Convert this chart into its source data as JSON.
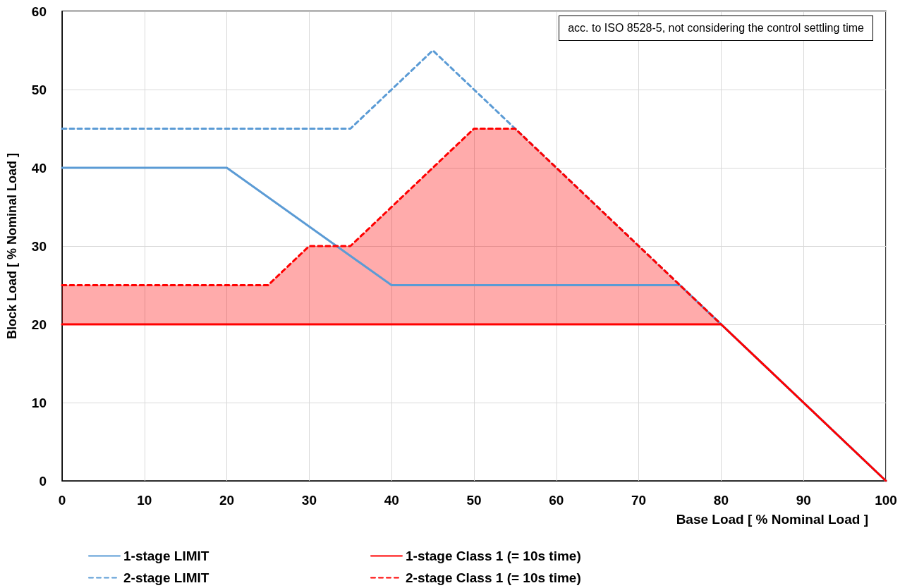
{
  "chart_data": {
    "type": "line",
    "xlabel": "Base Load [ % Nominal Load ]",
    "ylabel": "Block Load [ % Nominal Load ]",
    "annotations": [
      "acc. to ISO 8528-5, not considering the control settling time"
    ],
    "xlim": [
      0,
      100
    ],
    "xticks": [
      0,
      10,
      20,
      30,
      40,
      50,
      60,
      70,
      80,
      90,
      100
    ],
    "ylim": [
      0,
      60
    ],
    "yticks": [
      0,
      10,
      20,
      30,
      40,
      50,
      60
    ],
    "grid": true,
    "legend": "bottom",
    "marker": "none",
    "series": [
      {
        "name": "1-stage LIMIT",
        "color": "#5b9bd5",
        "line_style": "solid",
        "x": [
          0,
          20,
          40,
          75,
          80,
          100
        ],
        "values": [
          40,
          40,
          25,
          25,
          20,
          0
        ]
      },
      {
        "name": "2-stage LIMIT",
        "color": "#5b9bd5",
        "line_style": "dashed",
        "x": [
          0,
          35,
          45,
          55,
          80,
          100
        ],
        "values": [
          45,
          45,
          55,
          45,
          20,
          0
        ]
      },
      {
        "name": "1-stage Class 1 (= 10s time)",
        "color": "#ff0000",
        "line_style": "solid",
        "x": [
          0,
          80,
          100
        ],
        "values": [
          20,
          20,
          0
        ]
      },
      {
        "name": "2-stage Class 1 (= 10s time)",
        "color": "#ff0000",
        "line_style": "dashed",
        "x": [
          0,
          25,
          30,
          35,
          50,
          55,
          80
        ],
        "values": [
          25,
          25,
          30,
          30,
          45,
          45,
          20
        ],
        "lower": [
          20,
          20,
          20,
          20,
          20,
          20,
          20
        ],
        "upper": [
          25,
          25,
          30,
          30,
          45,
          45,
          20
        ]
      }
    ]
  }
}
